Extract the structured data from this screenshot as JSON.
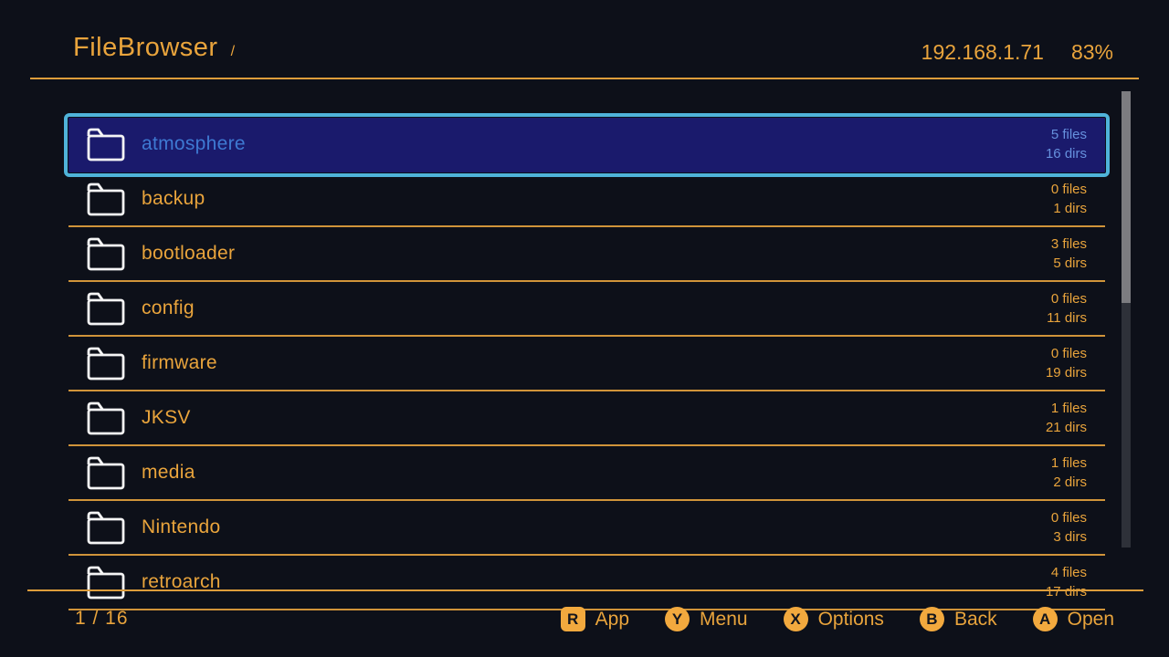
{
  "header": {
    "title": "FileBrowser",
    "path": "/",
    "ip_address": "192.168.1.71",
    "battery": "83%"
  },
  "file_list": {
    "items": [
      {
        "name": "atmosphere",
        "files": "5 files",
        "dirs": "16 dirs",
        "selected": true
      },
      {
        "name": "backup",
        "files": "0 files",
        "dirs": "1 dirs",
        "selected": false
      },
      {
        "name": "bootloader",
        "files": "3 files",
        "dirs": "5 dirs",
        "selected": false
      },
      {
        "name": "config",
        "files": "0 files",
        "dirs": "11 dirs",
        "selected": false
      },
      {
        "name": "firmware",
        "files": "0 files",
        "dirs": "19 dirs",
        "selected": false
      },
      {
        "name": "JKSV",
        "files": "1 files",
        "dirs": "21 dirs",
        "selected": false
      },
      {
        "name": "media",
        "files": "1 files",
        "dirs": "2 dirs",
        "selected": false
      },
      {
        "name": "Nintendo",
        "files": "0 files",
        "dirs": "3 dirs",
        "selected": false
      },
      {
        "name": "retroarch",
        "files": "4 files",
        "dirs": "17 dirs",
        "selected": false
      }
    ],
    "row_icon": "folder-icon"
  },
  "scrollbar": {
    "visible": true
  },
  "footer": {
    "page_indicator": "1 / 16",
    "hints": [
      {
        "button": "R",
        "label": "App",
        "shape": "square"
      },
      {
        "button": "Y",
        "label": "Menu",
        "shape": "circle"
      },
      {
        "button": "X",
        "label": "Options",
        "shape": "circle"
      },
      {
        "button": "B",
        "label": "Back",
        "shape": "circle"
      },
      {
        "button": "A",
        "label": "Open",
        "shape": "circle"
      }
    ]
  },
  "colors": {
    "background": "#0d1019",
    "accent_orange": "#e9a43c",
    "selection_border": "#4fb3da",
    "selection_fill": "#1a1a6c",
    "selection_text": "#3e79d2",
    "badge_fill": "#f2a93e",
    "scrollbar_thumb": "#7c7c80",
    "scrollbar_track": "#2e3139"
  }
}
